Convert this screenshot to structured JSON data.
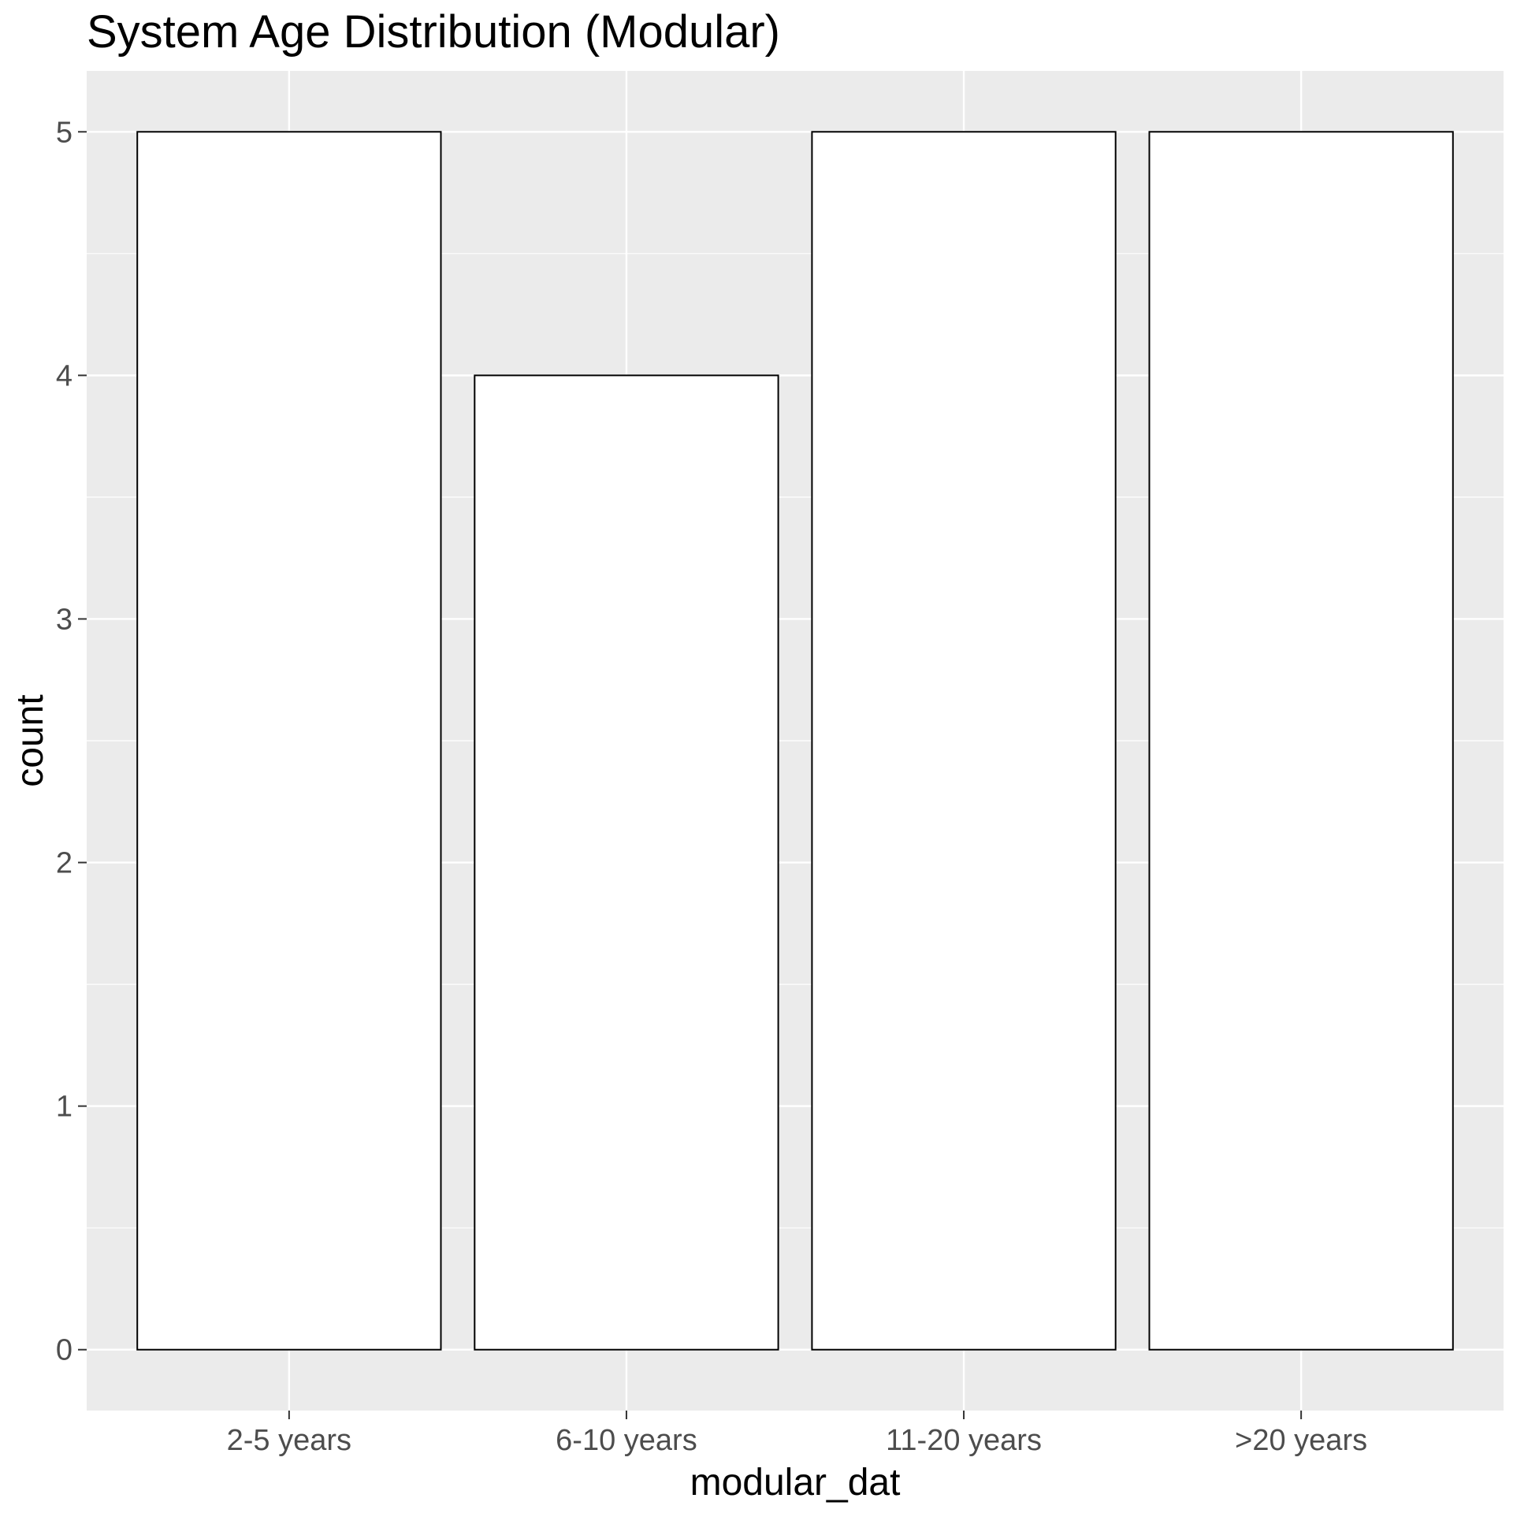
{
  "chart_data": {
    "type": "bar",
    "title": "System Age Distribution (Modular)",
    "xlabel": "modular_dat",
    "ylabel": "count",
    "categories": [
      "2-5 years",
      "6-10 years",
      "11-20 years",
      ">20 years"
    ],
    "values": [
      5,
      4,
      5,
      5
    ],
    "y_ticks": [
      "0",
      "1",
      "2",
      "3",
      "4",
      "5"
    ],
    "ylim": [
      -0.25,
      5.25
    ],
    "grid": true,
    "legend": "none",
    "colors": {
      "panel_background": "#ebebeb",
      "grid": "#ffffff",
      "bar_fill": "#ffffff",
      "bar_outline": "#000000",
      "tick_text": "#4d4d4d",
      "tick_mark": "#333333"
    }
  }
}
